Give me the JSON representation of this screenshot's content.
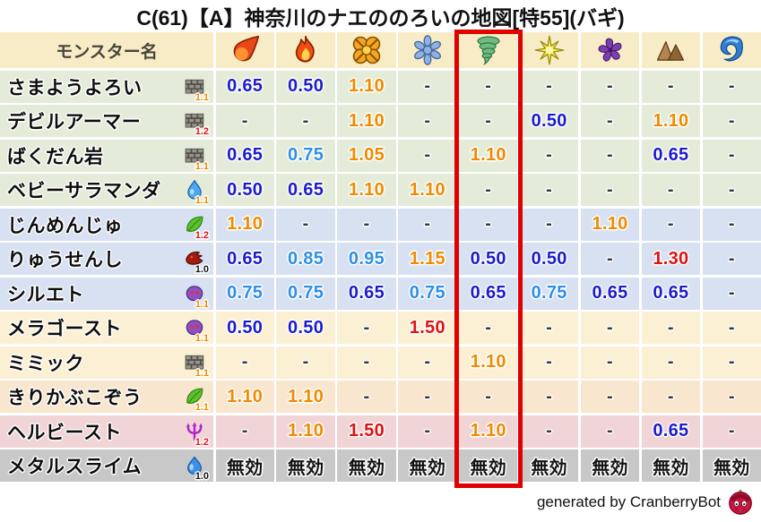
{
  "title": "C(61)【A】神奈川のナエののろいの地図[特55](バギ)",
  "footer": {
    "credit": "generated by CranberryBot",
    "bot_icon": "cranberry-bot-icon"
  },
  "palette": {
    "highlight_box": "#e00000",
    "header_bg": "#f8ecc6",
    "band_green": "#e4ecd9",
    "band_blue": "#d7e1f1",
    "band_cream": "#fbf0d4",
    "band_peach": "#f8e7ce",
    "band_pink": "#f1d4d6",
    "band_gray": "#c8c8c8",
    "value_navy": "#1c1ccd",
    "value_lightblue": "#2f8fe6",
    "value_orange": "#f08a00",
    "value_red": "#e01212",
    "value_dash": "#3a3a3a",
    "value_nullified": "#141414",
    "sub_orange": "#f08a00",
    "sub_red": "#e01212",
    "sub_black": "#111111"
  },
  "table": {
    "name_header": "モンスター名",
    "highlighted_column": 5,
    "no_effect_label": "無効",
    "columns": [
      {
        "icon": "fireball-icon"
      },
      {
        "icon": "flame-icon"
      },
      {
        "icon": "explosion-icon"
      },
      {
        "icon": "snowflake-icon"
      },
      {
        "icon": "tornado-icon",
        "highlighted": true
      },
      {
        "icon": "starburst-icon"
      },
      {
        "icon": "pinwheel-icon"
      },
      {
        "icon": "mountain-icon"
      },
      {
        "icon": "wave-icon"
      }
    ],
    "rows": [
      {
        "name": "さまようよろい",
        "family_icon": "brick-icon",
        "rate": "1.1",
        "rate_color": "orange",
        "band": "green",
        "values": [
          "0.65",
          "0.50",
          "1.10",
          "-",
          "-",
          "-",
          "-",
          "-",
          "-"
        ]
      },
      {
        "name": "デビルアーマー",
        "family_icon": "brick-icon",
        "rate": "1.2",
        "rate_color": "red",
        "band": "green",
        "values": [
          "-",
          "-",
          "1.10",
          "-",
          "-",
          "0.50",
          "-",
          "1.10",
          "-"
        ]
      },
      {
        "name": "ばくだん岩",
        "family_icon": "brick-icon",
        "rate": "1.1",
        "rate_color": "orange",
        "band": "green",
        "values": [
          "0.65",
          "0.75",
          "1.05",
          "-",
          "1.10",
          "-",
          "-",
          "0.65",
          "-"
        ]
      },
      {
        "name": "ベビーサラマンダ",
        "family_icon": "waterdrop-icon",
        "rate": "1.1",
        "rate_color": "orange",
        "band": "green",
        "values": [
          "0.50",
          "0.65",
          "1.10",
          "1.10",
          "-",
          "-",
          "-",
          "-",
          "-"
        ]
      },
      {
        "name": "じんめんじゅ",
        "family_icon": "leaf-icon",
        "rate": "1.2",
        "rate_color": "red",
        "band": "blue",
        "values": [
          "1.10",
          "-",
          "-",
          "-",
          "-",
          "-",
          "1.10",
          "-",
          "-"
        ]
      },
      {
        "name": "りゅうせんし",
        "family_icon": "dragon-icon",
        "rate": "1.0",
        "rate_color": "black",
        "band": "blue",
        "values": [
          "0.65",
          "0.85",
          "0.95",
          "1.15",
          "0.50",
          "0.50",
          "-",
          "1.30",
          "-"
        ]
      },
      {
        "name": "シルエト",
        "family_icon": "ghost-icon",
        "rate": "1.1",
        "rate_color": "orange",
        "band": "blue",
        "values": [
          "0.75",
          "0.75",
          "0.65",
          "0.75",
          "0.65",
          "0.75",
          "0.65",
          "0.65",
          "-"
        ]
      },
      {
        "name": "メラゴースト",
        "family_icon": "ghost-icon",
        "rate": "1.1",
        "rate_color": "orange",
        "band": "cream",
        "values": [
          "0.50",
          "0.50",
          "-",
          "1.50",
          "-",
          "-",
          "-",
          "-",
          "-"
        ]
      },
      {
        "name": "ミミック",
        "family_icon": "brick-icon",
        "rate": "1.1",
        "rate_color": "orange",
        "band": "cream",
        "values": [
          "-",
          "-",
          "-",
          "-",
          "1.10",
          "-",
          "-",
          "-",
          "-"
        ]
      },
      {
        "name": "きりかぶこぞう",
        "family_icon": "leaf-icon",
        "rate": "1.1",
        "rate_color": "orange",
        "band": "peach",
        "values": [
          "1.10",
          "1.10",
          "-",
          "-",
          "-",
          "-",
          "-",
          "-",
          "-"
        ]
      },
      {
        "name": "ヘルビースト",
        "family_icon": "trident-icon",
        "rate": "1.2",
        "rate_color": "red",
        "band": "pink",
        "values": [
          "-",
          "1.10",
          "1.50",
          "-",
          "1.10",
          "-",
          "-",
          "0.65",
          "-"
        ]
      },
      {
        "name": "メタルスライム",
        "family_icon": "slime-icon",
        "rate": "1.0",
        "rate_color": "black",
        "band": "gray",
        "values": [
          "無効",
          "無効",
          "無効",
          "無効",
          "無効",
          "無効",
          "無効",
          "無効",
          "無効"
        ]
      }
    ]
  }
}
